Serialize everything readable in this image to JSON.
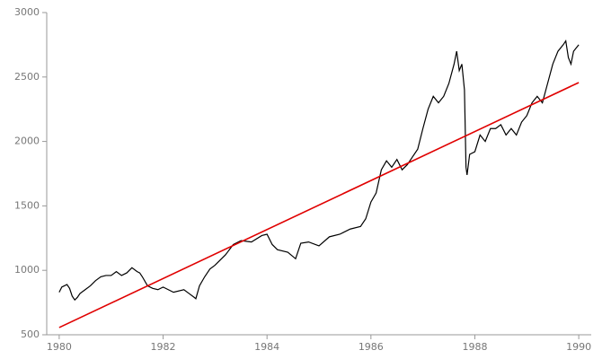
{
  "chart_data": {
    "type": "line",
    "series": [
      {
        "color": "#000000",
        "x": [
          1980.0,
          1980.05,
          1980.1,
          1980.15,
          1980.2,
          1980.25,
          1980.3,
          1980.35,
          1980.4,
          1980.5,
          1980.6,
          1980.7,
          1980.8,
          1980.9,
          1981.0,
          1981.1,
          1981.2,
          1981.3,
          1981.4,
          1981.5,
          1981.55,
          1981.6,
          1981.7,
          1981.8,
          1981.9,
          1982.0,
          1982.2,
          1982.4,
          1982.5,
          1982.6,
          1982.63,
          1982.7,
          1982.8,
          1982.9,
          1983.0,
          1983.2,
          1983.35,
          1983.5,
          1983.7,
          1983.9,
          1984.0,
          1984.1,
          1984.2,
          1984.4,
          1984.55,
          1984.65,
          1984.8,
          1985.0,
          1985.2,
          1985.4,
          1985.6,
          1985.8,
          1985.9,
          1986.0,
          1986.1,
          1986.2,
          1986.3,
          1986.4,
          1986.5,
          1986.6,
          1986.7,
          1986.8,
          1986.9,
          1987.0,
          1987.1,
          1987.2,
          1987.3,
          1987.4,
          1987.5,
          1987.6,
          1987.65,
          1987.7,
          1987.75,
          1987.8,
          1987.83,
          1987.85,
          1987.9,
          1988.0,
          1988.1,
          1988.2,
          1988.3,
          1988.4,
          1988.5,
          1988.6,
          1988.7,
          1988.8,
          1988.9,
          1989.0,
          1989.1,
          1989.2,
          1989.3,
          1989.4,
          1989.5,
          1989.6,
          1989.7,
          1989.75,
          1989.8,
          1989.85,
          1989.9,
          1990.0
        ],
        "values": [
          830,
          870,
          880,
          890,
          860,
          800,
          770,
          790,
          820,
          850,
          880,
          920,
          950,
          960,
          960,
          990,
          960,
          980,
          1020,
          990,
          980,
          950,
          880,
          860,
          850,
          870,
          830,
          850,
          820,
          790,
          780,
          880,
          950,
          1010,
          1040,
          1120,
          1200,
          1230,
          1220,
          1270,
          1280,
          1200,
          1160,
          1140,
          1090,
          1210,
          1220,
          1190,
          1260,
          1280,
          1320,
          1340,
          1400,
          1530,
          1600,
          1780,
          1850,
          1800,
          1860,
          1780,
          1820,
          1880,
          1940,
          2100,
          2250,
          2350,
          2300,
          2350,
          2450,
          2600,
          2700,
          2550,
          2600,
          2400,
          1800,
          1740,
          1900,
          1920,
          2050,
          2000,
          2100,
          2100,
          2130,
          2050,
          2100,
          2050,
          2150,
          2200,
          2300,
          2350,
          2300,
          2450,
          2600,
          2700,
          2750,
          2780,
          2650,
          2600,
          2700,
          2750
        ]
      },
      {
        "color": "#e00000",
        "x": [
          1980,
          1990
        ],
        "values": [
          556,
          2457
        ]
      }
    ],
    "xlim": [
      1979.76,
      1990.24
    ],
    "xticks": [
      1980,
      1982,
      1984,
      1986,
      1988,
      1990
    ],
    "ylim": [
      500,
      3000
    ],
    "yticks": [
      500,
      1000,
      1500,
      2000,
      2500,
      3000
    ]
  }
}
